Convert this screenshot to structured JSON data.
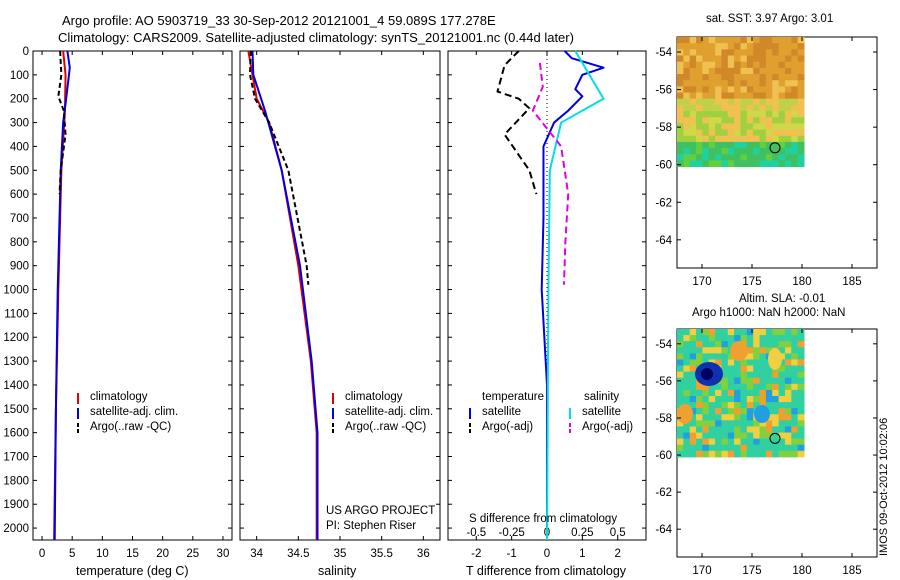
{
  "header": {
    "line1": "Argo profile: AO 5903719_33 30-Sep-2012 20121001_4 59.089S 177.278E",
    "line2": "Climatology: CARS2009. Satellite-adjusted climatology: synTS_20121001.nc (0.44d later)"
  },
  "colors": {
    "climatology": "#e00000",
    "satellite": "#0000e0",
    "argo": "#000000",
    "sal_satellite": "#00e0e0",
    "sal_argo": "#e000e0"
  },
  "chart_data": [
    {
      "type": "line",
      "xlabel": "temperature (deg C)",
      "xticks": [
        0,
        5,
        10,
        15,
        20,
        25,
        30
      ],
      "xlim": [
        -1.5,
        31.5
      ],
      "ylim": [
        0,
        2050
      ],
      "yticks": [
        0,
        100,
        200,
        300,
        400,
        500,
        600,
        700,
        800,
        900,
        1000,
        1100,
        1200,
        1300,
        1400,
        1500,
        1600,
        1700,
        1800,
        1900,
        2000
      ],
      "legend": [
        "climatology",
        "satellite-adj. clim.",
        "Argo(..raw -QC)"
      ],
      "series": [
        {
          "name": "climatology",
          "points": [
            [
              3.5,
              0
            ],
            [
              3.9,
              100
            ],
            [
              3.8,
              250
            ],
            [
              3.2,
              500
            ],
            [
              2.7,
              1000
            ],
            [
              2.3,
              1500
            ],
            [
              2.0,
              2050
            ]
          ]
        },
        {
          "name": "satellite-adj. clim.",
          "points": [
            [
              4.2,
              0
            ],
            [
              4.6,
              70
            ],
            [
              4.0,
              200
            ],
            [
              3.5,
              300
            ],
            [
              3.1,
              500
            ],
            [
              2.8,
              800
            ],
            [
              2.6,
              1000
            ],
            [
              2.3,
              1500
            ],
            [
              2.1,
              2050
            ]
          ]
        },
        {
          "name": "Argo(..raw -QC)",
          "points": [
            [
              3.0,
              0
            ],
            [
              3.2,
              100
            ],
            [
              2.7,
              190
            ],
            [
              3.6,
              250
            ],
            [
              3.9,
              350
            ],
            [
              3.1,
              500
            ],
            [
              2.9,
              600
            ]
          ]
        }
      ]
    },
    {
      "type": "line",
      "xlabel": "salinity",
      "xticks": [
        34,
        34.5,
        35,
        35.5,
        36
      ],
      "xtick_labels": [
        "34",
        "34.5",
        "35",
        "35.5",
        "36"
      ],
      "xlim": [
        33.8,
        36.2
      ],
      "ylim": [
        0,
        2050
      ],
      "legend": [
        "climatology",
        "satellite-adj. clim.",
        "Argo(..raw -QC)"
      ],
      "annotation": [
        "US ARGO PROJECT",
        "PI: Stephen Riser"
      ],
      "series": [
        {
          "name": "climatology",
          "points": [
            [
              33.9,
              0
            ],
            [
              34.0,
              200
            ],
            [
              34.15,
              300
            ],
            [
              34.3,
              500
            ],
            [
              34.5,
              900
            ],
            [
              34.65,
              1300
            ],
            [
              34.72,
              1600
            ],
            [
              34.72,
              2050
            ]
          ]
        },
        {
          "name": "satellite-adj. clim.",
          "points": [
            [
              33.95,
              0
            ],
            [
              33.96,
              100
            ],
            [
              34.1,
              250
            ],
            [
              34.3,
              500
            ],
            [
              34.52,
              900
            ],
            [
              34.66,
              1300
            ],
            [
              34.73,
              1600
            ],
            [
              34.73,
              2050
            ]
          ]
        },
        {
          "name": "Argo(..raw -QC)",
          "points": [
            [
              33.93,
              0
            ],
            [
              33.92,
              100
            ],
            [
              33.98,
              200
            ],
            [
              34.15,
              300
            ],
            [
              34.38,
              500
            ],
            [
              34.6,
              900
            ],
            [
              34.62,
              980
            ]
          ]
        }
      ]
    },
    {
      "type": "line",
      "xlabel": "T difference from climatology",
      "xlabel_top": "S difference from climatology",
      "xticks": [
        -2,
        -1,
        0,
        1,
        2
      ],
      "xlim": [
        -2.8,
        2.8
      ],
      "sticks": [
        -0.5,
        -0.25,
        0,
        0.25,
        0.5
      ],
      "stick_labels": [
        "-0.5",
        "-0.25",
        "0",
        "0.25",
        "0.5"
      ],
      "ylim": [
        0,
        2050
      ],
      "legend_headers": [
        "temperature",
        "salinity"
      ],
      "legend": [
        "satellite",
        "Argo(-adj)",
        "satellite",
        "Argo(-adj)"
      ],
      "series": [
        {
          "name": "T satellite",
          "points": [
            [
              0.5,
              0
            ],
            [
              0.7,
              30
            ],
            [
              1.6,
              70
            ],
            [
              1.0,
              100
            ],
            [
              0.8,
              160
            ],
            [
              1.0,
              190
            ],
            [
              0.6,
              250
            ],
            [
              0.2,
              300
            ],
            [
              -0.1,
              400
            ],
            [
              -0.1,
              700
            ],
            [
              -0.15,
              1000
            ],
            [
              0,
              1400
            ],
            [
              0,
              2050
            ]
          ]
        },
        {
          "name": "T Argo(-adj)",
          "points": [
            [
              -0.8,
              0
            ],
            [
              -1.2,
              60
            ],
            [
              -1.4,
              170
            ],
            [
              -0.8,
              200
            ],
            [
              -0.5,
              240
            ],
            [
              -1.2,
              350
            ],
            [
              -0.5,
              500
            ],
            [
              -0.3,
              600
            ]
          ]
        },
        {
          "name": "S satellite",
          "points": [
            [
              0.2,
              0
            ],
            [
              0.3,
              100
            ],
            [
              0.4,
              200
            ],
            [
              0.1,
              300
            ],
            [
              0.02,
              500
            ],
            [
              0.01,
              1000
            ],
            [
              0,
              2050
            ]
          ]
        },
        {
          "name": "S Argo(-adj)",
          "points": [
            [
              -0.05,
              50
            ],
            [
              -0.03,
              150
            ],
            [
              -0.1,
              250
            ],
            [
              0.1,
              400
            ],
            [
              0.15,
              600
            ],
            [
              0.13,
              800
            ],
            [
              0.12,
              980
            ]
          ]
        }
      ]
    }
  ],
  "maps": [
    {
      "title": "sat. SST: 3.97 Argo: 3.01",
      "xticks": [
        170,
        175,
        180,
        185
      ],
      "yticks": [
        -54,
        -56,
        -58,
        -60,
        -62,
        -64
      ],
      "xlim": [
        167.5,
        187.5
      ],
      "ylim": [
        -65.5,
        -53.2
      ],
      "data_extent": [
        167.5,
        180.2,
        -60.1,
        -53.2
      ],
      "marker": [
        177.3,
        -59.1
      ]
    },
    {
      "title1": "Altim. SLA: -0.01",
      "title2": "Argo h1000: NaN h2000: NaN",
      "xticks": [
        170,
        175,
        180,
        185
      ],
      "yticks": [
        -54,
        -56,
        -58,
        -60,
        -62,
        -64
      ],
      "xlim": [
        167.5,
        187.5
      ],
      "ylim": [
        -65.5,
        -53.2
      ],
      "data_extent": [
        167.5,
        180.2,
        -60.1,
        -53.2
      ],
      "marker": [
        177.3,
        -59.1
      ]
    }
  ],
  "footer": "IMOS 09-Oct-2012 10:02:06"
}
